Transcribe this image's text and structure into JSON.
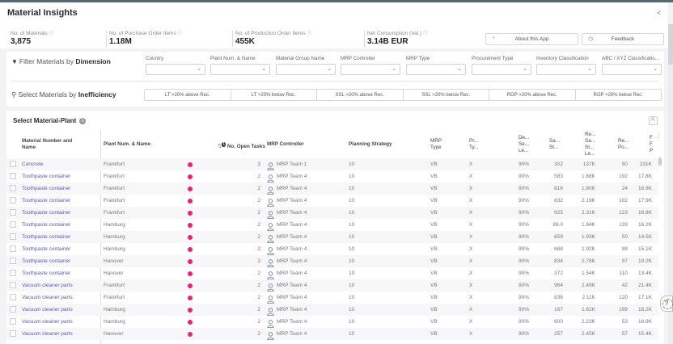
{
  "app": {
    "title": "Material Insights",
    "share_icon": "share-icon"
  },
  "kpis": [
    {
      "label": "No. of Materials",
      "value": "3,875"
    },
    {
      "label": "No. of Purchase Order Items",
      "value": "1.18M"
    },
    {
      "label": "No. of Production Order Items",
      "value": "455K"
    },
    {
      "label": "Net Consumption (Val.)",
      "value": "3.14B EUR"
    }
  ],
  "info_glyph": "ⓘ",
  "header_buttons": {
    "about": "About this App",
    "feedback": "Feedback"
  },
  "filters": {
    "title_prefix": "Filter Materials by ",
    "title_bold": "Dimension",
    "fields": [
      {
        "label": "Country",
        "value": ""
      },
      {
        "label": "Plant Num. & Name",
        "value": ""
      },
      {
        "label": "Material Group Name",
        "value": ""
      },
      {
        "label": "MRP Controller",
        "value": ""
      },
      {
        "label": "MRP Type",
        "value": ""
      },
      {
        "label": "Procurement Type",
        "value": ""
      },
      {
        "label": "Inventory Classification",
        "value": ""
      },
      {
        "label": "ABC / XYZ Classificatio...",
        "value": ""
      }
    ]
  },
  "inefficiency": {
    "title_prefix": "Select Materials by ",
    "title_bold": "Inefficiency",
    "options": [
      "LT >20% above Rec.",
      "LT >20% below Rec.",
      "SSL >20% above Rec.",
      "SSL >20% below Rec.",
      "ROP >20% above Rec.",
      "ROP >20% below Rec."
    ]
  },
  "table": {
    "title": "Select Material-Plant",
    "columns": {
      "material": "Material Number and Name",
      "plant": "Plant Num. & Name",
      "sort_badge": "1",
      "open_tasks": "No. Open Tasks",
      "mrp_controller": "MRP Controller",
      "planning_strategy": "Planning Strategy",
      "mrp_type": "MRP Type",
      "proc_type": "Pr... Ty...",
      "dsl": "De... Se... Le...",
      "safety_stock": "Sa... St...",
      "rec_ssl": "Re... Sa... St... Le...",
      "reorder_point": "Re... Po...",
      "last": "F F P"
    },
    "rows": [
      {
        "material": "Concrete",
        "plant": "Frankfurt",
        "tasks": "3",
        "controller": "MRP Team 1",
        "strategy": "10",
        "mrp_type": "VB",
        "proc": "X",
        "dsl": "90%",
        "ss": "302",
        "rec": "137K",
        "rop": "50",
        "last": "231K"
      },
      {
        "material": "Toothpaste container",
        "plant": "Frankfurt",
        "tasks": "2",
        "controller": "MRP Team 4",
        "strategy": "10",
        "mrp_type": "VB",
        "proc": "X",
        "dsl": "90%",
        "ss": "583",
        "rec": "1.88K",
        "rop": "192",
        "last": "17.8K"
      },
      {
        "material": "Toothpaste container",
        "plant": "Frankfurt",
        "tasks": "2",
        "controller": "MRP Team 4",
        "strategy": "10",
        "mrp_type": "VB",
        "proc": "X",
        "dsl": "90%",
        "ss": "816",
        "rec": "1.80K",
        "rop": "24",
        "last": "16.9K"
      },
      {
        "material": "Toothpaste container",
        "plant": "Frankfurt",
        "tasks": "2",
        "controller": "MRP Team 4",
        "strategy": "10",
        "mrp_type": "VB",
        "proc": "X",
        "dsl": "90%",
        "ss": "832",
        "rec": "2.19K",
        "rop": "102",
        "last": "17.9K"
      },
      {
        "material": "Toothpaste container",
        "plant": "Frankfurt",
        "tasks": "2",
        "controller": "MRP Team 4",
        "strategy": "10",
        "mrp_type": "VB",
        "proc": "X",
        "dsl": "90%",
        "ss": "925",
        "rec": "2.31K",
        "rop": "123",
        "last": "16.8K"
      },
      {
        "material": "Toothpaste container",
        "plant": "Hamburg",
        "tasks": "2",
        "controller": "MRP Team 4",
        "strategy": "10",
        "mrp_type": "VB",
        "proc": "X",
        "dsl": "90%",
        "ss": "89.0",
        "rec": "1.84K",
        "rop": "139",
        "last": "16.2K"
      },
      {
        "material": "Toothpaste container",
        "plant": "Hamburg",
        "tasks": "2",
        "controller": "MRP Team 4",
        "strategy": "10",
        "mrp_type": "VB",
        "proc": "X",
        "dsl": "90%",
        "ss": "659",
        "rec": "1.93K",
        "rop": "50",
        "last": "14.5K"
      },
      {
        "material": "Toothpaste container",
        "plant": "Hamburg",
        "tasks": "2",
        "controller": "MRP Team 4",
        "strategy": "10",
        "mrp_type": "VB",
        "proc": "X",
        "dsl": "90%",
        "ss": "688",
        "rec": "1.92K",
        "rop": "88",
        "last": "15.1K"
      },
      {
        "material": "Toothpaste container",
        "plant": "Hanover",
        "tasks": "2",
        "controller": "MRP Team 4",
        "strategy": "10",
        "mrp_type": "VB",
        "proc": "X",
        "dsl": "90%",
        "ss": "834",
        "rec": "2.78K",
        "rop": "97",
        "last": "19.2K"
      },
      {
        "material": "Toothpaste container",
        "plant": "Hanover",
        "tasks": "2",
        "controller": "MRP Team 4",
        "strategy": "10",
        "mrp_type": "VB",
        "proc": "X",
        "dsl": "90%",
        "ss": "372",
        "rec": "1.54K",
        "rop": "110",
        "last": "13.4K"
      },
      {
        "material": "Vacuum cleaner parts",
        "plant": "Frankfurt",
        "tasks": "2",
        "controller": "MRP Team 4",
        "strategy": "10",
        "mrp_type": "VB",
        "proc": "X",
        "dsl": "90%",
        "ss": "964",
        "rec": "2.49K",
        "rop": "42",
        "last": "21.4K"
      },
      {
        "material": "Vacuum cleaner parts",
        "plant": "Frankfurt",
        "tasks": "2",
        "controller": "MRP Team 4",
        "strategy": "10",
        "mrp_type": "VB",
        "proc": "X",
        "dsl": "90%",
        "ss": "836",
        "rec": "2.11K",
        "rop": "120",
        "last": "17.1K"
      },
      {
        "material": "Vacuum cleaner parts",
        "plant": "Hamburg",
        "tasks": "2",
        "controller": "MRP Team 4",
        "strategy": "10",
        "mrp_type": "VB",
        "proc": "X",
        "dsl": "90%",
        "ss": "167",
        "rec": "1.62K",
        "rop": "199",
        "last": "18.2K"
      },
      {
        "material": "Vacuum cleaner parts",
        "plant": "Hamburg",
        "tasks": "2",
        "controller": "MRP Team 4",
        "strategy": "10",
        "mrp_type": "VB",
        "proc": "X",
        "dsl": "90%",
        "ss": "600",
        "rec": "2.23K",
        "rop": "53",
        "last": "16.9K"
      },
      {
        "material": "Vacuum cleaner parts",
        "plant": "Hanover",
        "tasks": "2",
        "controller": "MRP Team 4",
        "strategy": "10",
        "mrp_type": "VB",
        "proc": "X",
        "dsl": "90%",
        "ss": "257",
        "rec": "2.45K",
        "rop": "57",
        "last": "15.4K"
      }
    ],
    "status_color": "#e8217a",
    "link_color": "#5a5ab0"
  },
  "help_button": "?"
}
